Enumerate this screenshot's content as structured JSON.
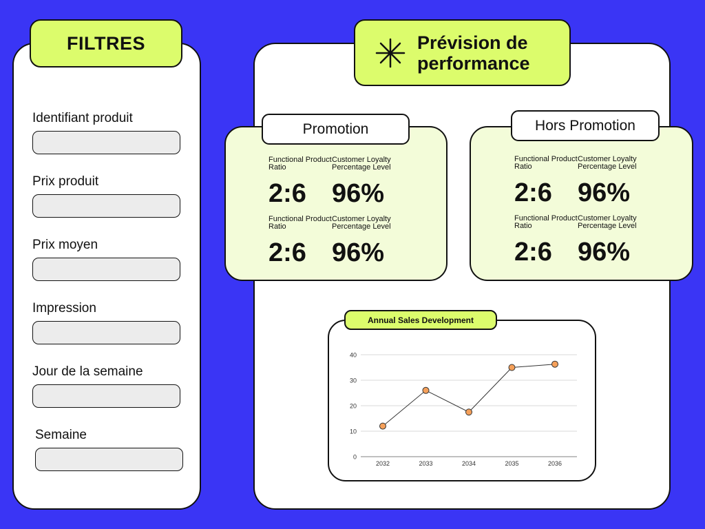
{
  "filters": {
    "title": "FILTRES",
    "fields": [
      {
        "label": "Identifiant produit",
        "value": "",
        "placeholder": ""
      },
      {
        "label": "Prix produit",
        "value": "",
        "placeholder": ""
      },
      {
        "label": "Prix moyen",
        "value": "",
        "placeholder": ""
      },
      {
        "label": "Impression",
        "value": "",
        "placeholder": ""
      },
      {
        "label": "Jour de la semaine",
        "value": "",
        "placeholder": ""
      },
      {
        "label": "Semaine",
        "value": "",
        "placeholder": ""
      }
    ]
  },
  "main": {
    "title": "Prévision de\nperformance",
    "icon": "asterisk-icon"
  },
  "promotion": {
    "title": "Promotion",
    "metrics": [
      {
        "label": "Functional Product Ratio",
        "value": "2:6"
      },
      {
        "label": "Customer Loyalty Percentage Level",
        "value": "96%"
      },
      {
        "label": "Functional Product Ratio",
        "value": "2:6"
      },
      {
        "label": "Customer Loyalty Percentage Level",
        "value": "96%"
      }
    ]
  },
  "hors_promotion": {
    "title": "Hors Promotion",
    "metrics": [
      {
        "label": "Functional Product Ratio",
        "value": "2:6"
      },
      {
        "label": "Customer Loyalty Percentage Level",
        "value": "96%"
      },
      {
        "label": "Functional Product Ratio",
        "value": "2:6"
      },
      {
        "label": "Customer Loyalty Percentage Level",
        "value": "96%"
      }
    ]
  },
  "chart_data": {
    "type": "line",
    "title": "Annual Sales Development",
    "xlabel": "",
    "ylabel": "",
    "categories": [
      "2032",
      "2033",
      "2034",
      "2035",
      "2036"
    ],
    "values": [
      12,
      26,
      17.5,
      35,
      36.3
    ],
    "ylim": [
      0,
      40
    ],
    "yticks": [
      0,
      10,
      20,
      30,
      40
    ],
    "grid": true,
    "legend": "none"
  },
  "colors": {
    "background": "#3A35F5",
    "accent": "#DCFC6C",
    "card": "#F3FCD9",
    "marker": "#F5A05A"
  }
}
